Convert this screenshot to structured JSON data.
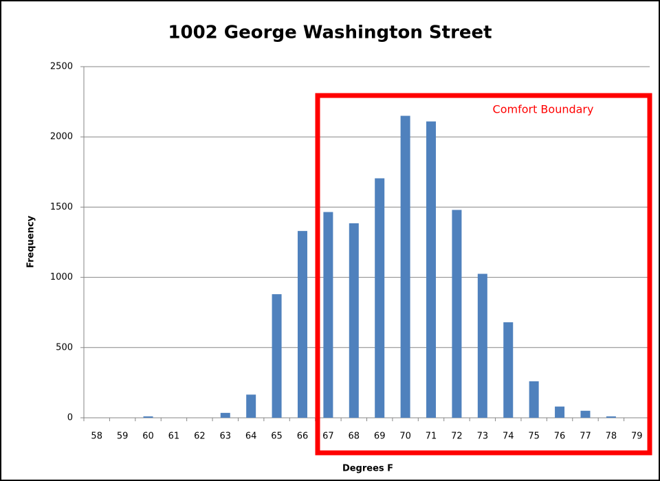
{
  "chart_data": {
    "type": "bar",
    "title": "1002 George Washington Street",
    "x_label": "Degrees F",
    "y_label": "Frequency",
    "annotation": "Comfort Boundary",
    "categories": [
      "58",
      "59",
      "60",
      "61",
      "62",
      "63",
      "64",
      "65",
      "66",
      "67",
      "68",
      "69",
      "70",
      "71",
      "72",
      "73",
      "74",
      "75",
      "76",
      "77",
      "78",
      "79"
    ],
    "values": [
      0,
      0,
      10,
      0,
      0,
      35,
      165,
      880,
      1330,
      1465,
      1385,
      1705,
      2150,
      2110,
      1480,
      1025,
      680,
      260,
      80,
      50,
      10,
      0
    ],
    "color": "#4f81bd",
    "ylim": [
      0,
      2500
    ],
    "yticks": [
      0,
      500,
      1000,
      1500,
      2000,
      2500
    ],
    "grid": true
  }
}
